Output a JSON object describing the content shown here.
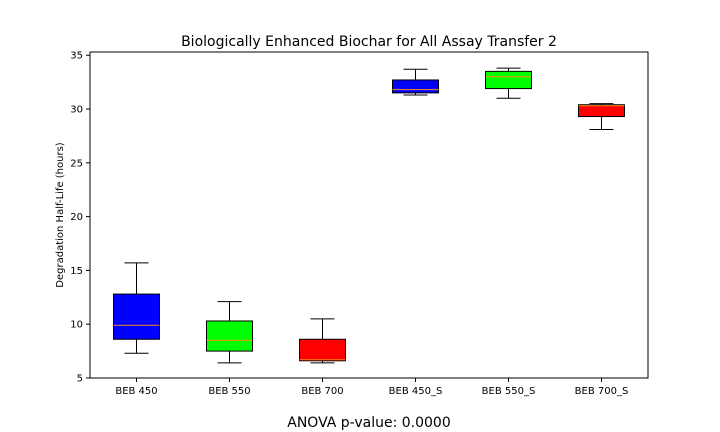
{
  "chart_data": {
    "type": "box",
    "title": "Biologically Enhanced Biochar for All Assay Transfer 2",
    "xlabel": "",
    "ylabel": "Degradation Half-Life (hours)",
    "ylim": [
      5,
      35.3
    ],
    "yticks": [
      5,
      10,
      15,
      20,
      25,
      30,
      35
    ],
    "grid": false,
    "categories": [
      "BEB 450",
      "BEB 550",
      "BEB 700",
      "BEB 450_S",
      "BEB 550_S",
      "BEB 700_S"
    ],
    "boxes": [
      {
        "category": "BEB 450",
        "whisker_low": 7.3,
        "q1": 8.6,
        "median": 9.9,
        "q3": 12.8,
        "whisker_high": 15.7,
        "color": "#0000ff"
      },
      {
        "category": "BEB 550",
        "whisker_low": 6.4,
        "q1": 7.5,
        "median": 8.5,
        "q3": 10.3,
        "whisker_high": 12.1,
        "color": "#00ff00"
      },
      {
        "category": "BEB 700",
        "whisker_low": 6.4,
        "q1": 6.6,
        "median": 6.7,
        "q3": 8.6,
        "whisker_high": 10.5,
        "color": "#ff0000"
      },
      {
        "category": "BEB 450_S",
        "whisker_low": 31.3,
        "q1": 31.5,
        "median": 31.8,
        "q3": 32.7,
        "whisker_high": 33.7,
        "color": "#0000ff"
      },
      {
        "category": "BEB 550_S",
        "whisker_low": 31.0,
        "q1": 31.9,
        "median": 33.0,
        "q3": 33.5,
        "whisker_high": 33.8,
        "color": "#00ff00"
      },
      {
        "category": "BEB 700_S",
        "whisker_low": 28.1,
        "q1": 29.3,
        "median": 30.3,
        "q3": 30.4,
        "whisker_high": 30.5,
        "color": "#ff0000"
      }
    ],
    "median_color": "#ff8c1a"
  },
  "footer_text": "ANOVA p-value: 0.0000"
}
